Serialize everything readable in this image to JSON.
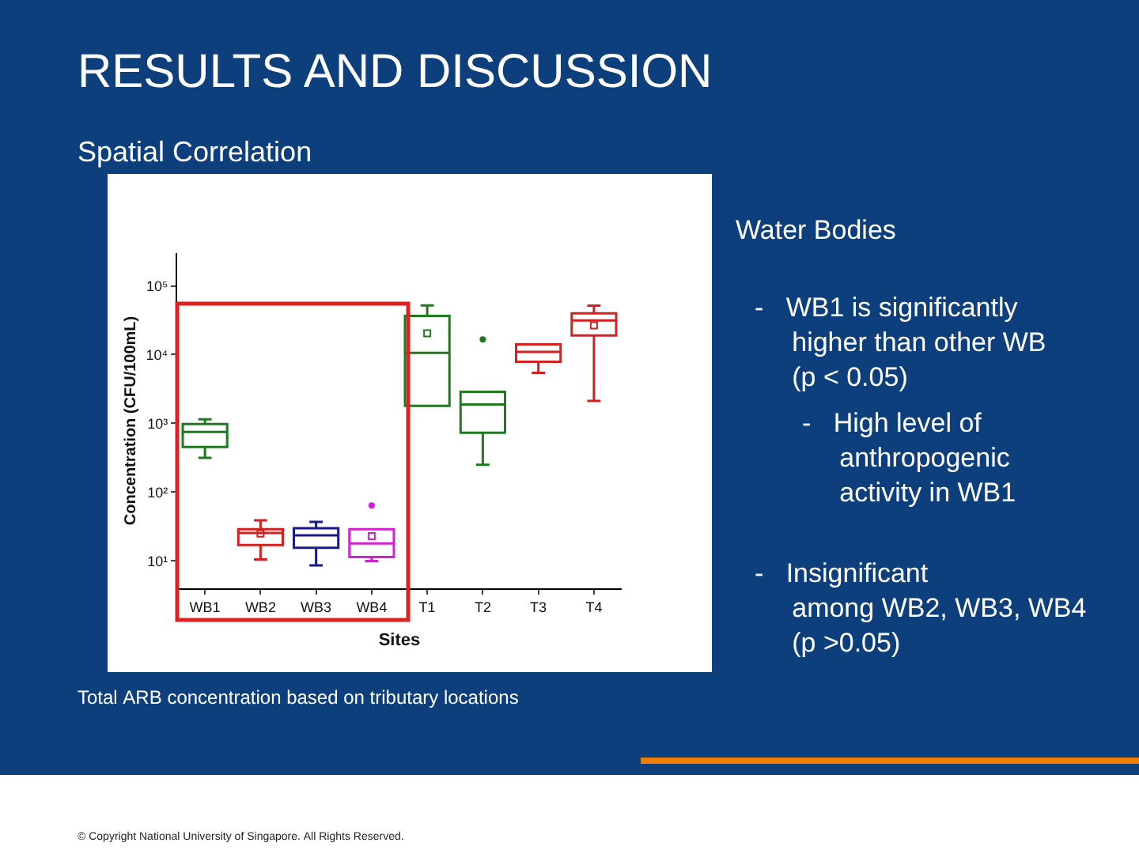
{
  "chart_data": {
    "type": "box",
    "title": "RESULTS AND DISCUSSION",
    "subtitle": "Spatial Correlation",
    "xlabel": "Sites",
    "ylabel": "Concentration (CFU/100mL)",
    "categories": [
      "WB1",
      "WB2",
      "WB3",
      "WB4",
      "T1",
      "T2",
      "T3",
      "T4"
    ],
    "colors": [
      "#1f7a1f",
      "#d42020",
      "#1a1a8c",
      "#d020d0",
      "#1f7a1f",
      "#1f7a1f",
      "#d42020",
      "#d42020"
    ],
    "boxes": [
      {
        "low": 315,
        "q1": 455,
        "median": 750,
        "q3": 980,
        "high": 1150
      },
      {
        "low": 10.5,
        "q1": 17,
        "median": 25.5,
        "q3": 29,
        "high": 39,
        "mean": 25
      },
      {
        "low": 8.6,
        "q1": 15.5,
        "median": 23.5,
        "q3": 30,
        "high": 37
      },
      {
        "low": 10,
        "q1": 11.4,
        "median": 18,
        "q3": 29,
        "high": 29,
        "mean": 23,
        "outliers": [
          64
        ]
      },
      {
        "low": 1800,
        "q1": 1800,
        "median": 10600,
        "q3": 36600,
        "high": 52000,
        "mean": 20400
      },
      {
        "low": 250,
        "q1": 730,
        "median": 1890,
        "q3": 2870,
        "high": 2870,
        "outliers": [
          16600
        ]
      },
      {
        "low": 5430,
        "q1": 7850,
        "median": 11000,
        "q3": 14100,
        "high": 14100
      },
      {
        "low": 2120,
        "q1": 19000,
        "median": 31500,
        "q3": 39800,
        "high": 51500,
        "mean": 26600
      }
    ],
    "log": true,
    "ylim": [
      4,
      300000
    ],
    "yticks": [
      {
        "value": 10,
        "label": "10¹"
      },
      {
        "value": 100,
        "label": "10²"
      },
      {
        "value": 1000,
        "label": "10³"
      },
      {
        "value": 10000,
        "label": "10⁴"
      },
      {
        "value": 100000,
        "label": "10⁵"
      }
    ],
    "annotations": [
      "Water Bodies",
      "-   WB1 is significantly\n     higher than other WB\n     (p < 0.05)",
      "-   High level of\n     anthropogenic\n     activity in WB1",
      "-   Insignificant\n     among WB2, WB3, WB4\n     (p >0.05)",
      "Total ARB concentration based on tributary locations",
      "© Copyright National University of Singapore. All Rights Reserved."
    ]
  }
}
